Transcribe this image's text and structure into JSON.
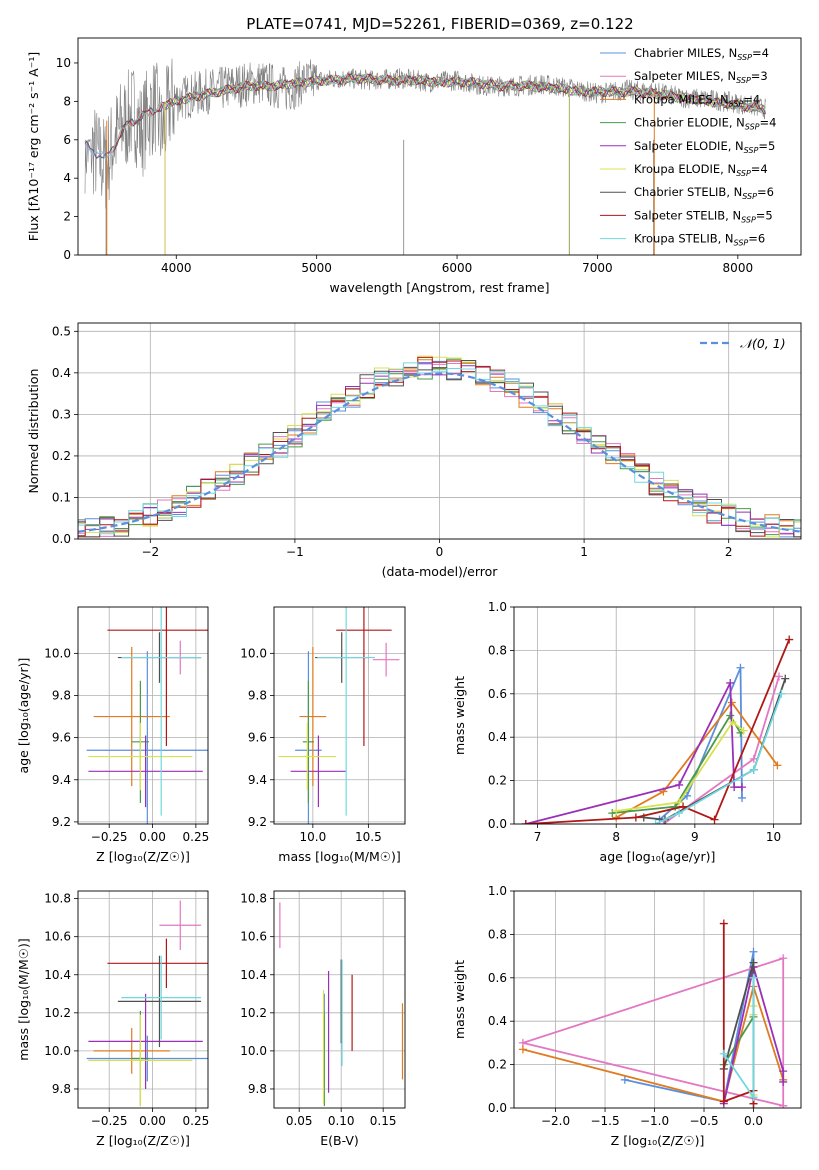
{
  "title": "PLATE=0741, MJD=52261, FIBERID=0369, z=0.122",
  "models": [
    {
      "name": "Chabrier MILES, N_SSP=4",
      "imf": "Chabrier MILES,",
      "n": "4",
      "color": "#5b8fdd"
    },
    {
      "name": "Salpeter MILES, N_SSP=3",
      "imf": "Salpeter MILES,",
      "n": "3",
      "color": "#e377c2"
    },
    {
      "name": "Kroupa MILES, N_SSP=4",
      "imf": "Kroupa MILES,",
      "n": "4",
      "color": "#e07b1f"
    },
    {
      "name": "Chabrier ELODIE, N_SSP=4",
      "imf": "Chabrier ELODIE,",
      "n": "4",
      "color": "#4a9a4a"
    },
    {
      "name": "Salpeter ELODIE, N_SSP=5",
      "imf": "Salpeter ELODIE,",
      "n": "5",
      "color": "#9a30b8"
    },
    {
      "name": "Kroupa ELODIE, N_SSP=4",
      "imf": "Kroupa ELODIE,",
      "n": "4",
      "color": "#d8e050"
    },
    {
      "name": "Chabrier STELIB, N_SSP=6",
      "imf": "Chabrier STELIB,",
      "n": "6",
      "color": "#505050"
    },
    {
      "name": "Salpeter STELIB, N_SSP=5",
      "imf": "Salpeter STELIB,",
      "n": "5",
      "color": "#b01818"
    },
    {
      "name": "Kroupa STELIB, N_SSP=6",
      "imf": "Kroupa STELIB,",
      "n": "6",
      "color": "#70d8e0"
    }
  ],
  "chart_data": [
    {
      "id": "spectrum",
      "type": "line",
      "xlabel": "wavelength [Angstrom, rest frame]",
      "ylabel": "Flux [fλ10⁻¹⁷ erg cm⁻² s⁻¹ A⁻¹]",
      "xlim": [
        3300,
        8450
      ],
      "ylim": [
        0,
        11.3
      ],
      "xticks": [
        4000,
        5000,
        6000,
        7000,
        8000
      ],
      "yticks": [
        0,
        2,
        4,
        6,
        8,
        10
      ],
      "data_color": "#808080",
      "data_x": [
        3350,
        3400,
        3450,
        3500,
        3550,
        3600,
        3650,
        3700,
        3750,
        3800,
        3850,
        3900,
        3950,
        4000,
        4100,
        4200,
        4300,
        4400,
        4500,
        4600,
        4700,
        4800,
        4900,
        5000,
        5200,
        5400,
        5600,
        5800,
        6000,
        6200,
        6400,
        6600,
        6800,
        7000,
        7200,
        7400,
        7600,
        7800,
        8000,
        8200
      ],
      "data_y": [
        5.8,
        5.6,
        5.0,
        4.7,
        5.8,
        6.6,
        7.0,
        7.5,
        6.4,
        7.4,
        7.8,
        6.2,
        7.8,
        8.1,
        8.3,
        8.5,
        8.6,
        8.8,
        8.9,
        9.0,
        8.8,
        8.6,
        9.0,
        9.1,
        9.2,
        9.1,
        9.2,
        9.0,
        9.1,
        8.8,
        8.8,
        8.9,
        8.7,
        8.4,
        8.6,
        8.5,
        8.2,
        8.1,
        7.9,
        7.6
      ],
      "model_x": [
        3350,
        3500,
        3650,
        3800,
        3950,
        4100,
        4300,
        4500,
        4700,
        4900,
        5100,
        5300,
        5500,
        5700,
        5900,
        6100,
        6300,
        6500,
        6700,
        6900,
        7100,
        7300,
        7500,
        7700,
        7900,
        8100,
        8200
      ],
      "model_y": [
        5.7,
        5.0,
        6.8,
        7.4,
        7.9,
        8.2,
        8.5,
        8.8,
        8.8,
        9.0,
        9.1,
        9.2,
        9.1,
        9.1,
        9.0,
        9.0,
        8.8,
        8.8,
        8.7,
        8.5,
        8.5,
        8.5,
        8.3,
        8.1,
        7.9,
        7.7,
        7.6
      ],
      "model_start": [
        3350,
        3350,
        3540,
        3920,
        3920,
        3920,
        3350,
        3550,
        3350
      ],
      "drops": [
        3500,
        3920,
        5620,
        6800,
        7400
      ]
    },
    {
      "id": "residuals",
      "type": "histogram",
      "xlabel": "(data-model)/error",
      "ylabel": "Normed distribution",
      "xlim": [
        -2.5,
        2.5
      ],
      "ylim": [
        0,
        0.52
      ],
      "xticks": [
        -2,
        -1,
        0,
        1,
        2
      ],
      "yticks": [
        0.0,
        0.1,
        0.2,
        0.3,
        0.4,
        0.5
      ],
      "legend": "𝒩(0, 1)",
      "bin_width": 0.1
    },
    {
      "id": "age-metallicity",
      "type": "errorbar",
      "xlabel": "Z [log₁₀(Z/Z☉)]",
      "ylabel": "age  [log₁₀(age/yr)]",
      "xlim": [
        -0.43,
        0.32
      ],
      "ylim": [
        9.19,
        10.22
      ],
      "xticks": [
        -0.25,
        0.0,
        0.25
      ],
      "xticklabels": [
        "−0.25",
        "0.00",
        "0.25"
      ],
      "yticks": [
        9.2,
        9.4,
        9.6,
        9.8,
        10.0
      ],
      "yticklabels": [
        "9.2",
        "9.4",
        "9.6",
        "9.8",
        "10.0"
      ],
      "points": [
        {
          "x": -0.03,
          "y": 9.54,
          "xerr": 0.35,
          "yerr": 0.47
        },
        {
          "x": 0.16,
          "y": 9.98,
          "xerr": 0.12,
          "yerr": 0.08
        },
        {
          "x": -0.12,
          "y": 9.7,
          "xerr": 0.22,
          "yerr": 0.33
        },
        {
          "x": -0.07,
          "y": 9.58,
          "xerr": 0.05,
          "yerr": 0.29
        },
        {
          "x": -0.04,
          "y": 9.44,
          "xerr": 0.33,
          "yerr": 0.17
        },
        {
          "x": -0.07,
          "y": 9.51,
          "xerr": 0.3,
          "yerr": 0.16
        },
        {
          "x": 0.04,
          "y": 9.98,
          "xerr": 0.24,
          "yerr": 0.12
        },
        {
          "x": 0.08,
          "y": 10.11,
          "xerr": 0.34,
          "yerr": 0.55
        },
        {
          "x": 0.05,
          "y": 9.98,
          "xerr": 0.23,
          "yerr": 0.75
        }
      ]
    },
    {
      "id": "age-mass",
      "type": "errorbar",
      "xlabel": "mass [log₁₀(M/M☉)]",
      "ylabel": "",
      "xlim": [
        9.65,
        10.83
      ],
      "ylim": [
        9.19,
        10.22
      ],
      "xticks": [
        10.0,
        10.5
      ],
      "xticklabels": [
        "10.0",
        "10.5"
      ],
      "yticks": [
        9.2,
        9.4,
        9.6,
        9.8,
        10.0
      ],
      "yticklabels": [
        "9.2",
        "9.4",
        "9.6",
        "9.8",
        "10.0"
      ],
      "points": [
        {
          "x": 9.96,
          "y": 9.54,
          "xerr": 0.12,
          "yerr": 0.47
        },
        {
          "x": 10.66,
          "y": 9.97,
          "xerr": 0.12,
          "yerr": 0.08
        },
        {
          "x": 10.0,
          "y": 9.7,
          "xerr": 0.12,
          "yerr": 0.33
        },
        {
          "x": 9.96,
          "y": 9.58,
          "xerr": 0.05,
          "yerr": 0.29
        },
        {
          "x": 10.05,
          "y": 9.44,
          "xerr": 0.25,
          "yerr": 0.17
        },
        {
          "x": 9.95,
          "y": 9.51,
          "xerr": 0.26,
          "yerr": 0.16
        },
        {
          "x": 10.26,
          "y": 9.98,
          "xerr": 0.24,
          "yerr": 0.12
        },
        {
          "x": 10.46,
          "y": 10.11,
          "xerr": 0.25,
          "yerr": 0.55
        },
        {
          "x": 10.3,
          "y": 9.98,
          "xerr": 0.26,
          "yerr": 0.75
        }
      ]
    },
    {
      "id": "mass-weight-age",
      "type": "line",
      "xlabel": "age  [log₁₀(age/yr)]",
      "ylabel": "mass weight",
      "xlim": [
        6.7,
        10.35
      ],
      "ylim": [
        0,
        1.0
      ],
      "xticks": [
        7,
        8,
        9,
        10
      ],
      "xticklabels": [
        "7",
        "8",
        "9",
        "10"
      ],
      "yticks": [
        0.0,
        0.2,
        0.4,
        0.6,
        0.8,
        1.0
      ],
      "yticklabels": [
        "0.0",
        "0.2",
        "0.4",
        "0.6",
        "0.8",
        "1.0"
      ],
      "series": [
        {
          "x": [
            8.55,
            8.9,
            9.58,
            9.6
          ],
          "y": [
            0.02,
            0.13,
            0.72,
            0.12
          ]
        },
        {
          "x": [
            8.6,
            9.75,
            10.07
          ],
          "y": [
            0.0,
            0.3,
            0.68
          ]
        },
        {
          "x": [
            8.0,
            8.6,
            9.47,
            10.05
          ],
          "y": [
            0.03,
            0.15,
            0.56,
            0.27
          ]
        },
        {
          "x": [
            7.95,
            8.75,
            9.45,
            9.58
          ],
          "y": [
            0.05,
            0.08,
            0.5,
            0.42
          ]
        },
        {
          "x": [
            6.85,
            8.8,
            9.45,
            9.5,
            9.6
          ],
          "y": [
            0.0,
            0.18,
            0.65,
            0.17,
            0.17
          ]
        },
        {
          "x": [
            8.0,
            8.8,
            9.48,
            9.62
          ],
          "y": [
            0.06,
            0.1,
            0.47,
            0.43
          ]
        },
        {
          "x": [
            8.35,
            8.62,
            9.75,
            10.15
          ],
          "y": [
            0.03,
            0.02,
            0.25,
            0.67
          ]
        },
        {
          "x": [
            6.85,
            8.25,
            8.85,
            9.25,
            10.2
          ],
          "y": [
            0.0,
            0.03,
            0.08,
            0.02,
            0.85
          ]
        },
        {
          "x": [
            8.5,
            8.8,
            9.75,
            10.1
          ],
          "y": [
            0.0,
            0.05,
            0.25,
            0.6
          ]
        }
      ]
    },
    {
      "id": "mass-metallicity",
      "type": "errorbar",
      "xlabel": "Z [log₁₀(Z/Z☉)]",
      "ylabel": "mass [log₁₀(M/M☉)]",
      "xlim": [
        -0.43,
        0.32
      ],
      "ylim": [
        9.7,
        10.84
      ],
      "xticks": [
        -0.25,
        0.0,
        0.25
      ],
      "xticklabels": [
        "−0.25",
        "0.00",
        "0.25"
      ],
      "yticks": [
        9.8,
        10.0,
        10.2,
        10.4,
        10.6,
        10.8
      ],
      "yticklabels": [
        "9.8",
        "10.0",
        "10.2",
        "10.4",
        "10.6",
        "10.8"
      ],
      "points": [
        {
          "x": -0.03,
          "y": 9.96,
          "xerr": 0.35,
          "yerr": 0.12
        },
        {
          "x": 0.16,
          "y": 10.66,
          "xerr": 0.12,
          "yerr": 0.13
        },
        {
          "x": -0.12,
          "y": 10.0,
          "xerr": 0.22,
          "yerr": 0.12
        },
        {
          "x": -0.07,
          "y": 9.96,
          "xerr": 0.05,
          "yerr": 0.25
        },
        {
          "x": -0.04,
          "y": 10.05,
          "xerr": 0.33,
          "yerr": 0.25
        },
        {
          "x": -0.07,
          "y": 9.95,
          "xerr": 0.3,
          "yerr": 0.24
        },
        {
          "x": 0.04,
          "y": 10.26,
          "xerr": 0.24,
          "yerr": 0.24
        },
        {
          "x": 0.08,
          "y": 10.46,
          "xerr": 0.34,
          "yerr": 0.13
        },
        {
          "x": 0.05,
          "y": 10.28,
          "xerr": 0.23,
          "yerr": 0.22
        }
      ]
    },
    {
      "id": "mass-extinction",
      "type": "errorbar",
      "xlabel": "E(B-V)",
      "ylabel": "",
      "xlim": [
        0.02,
        0.176
      ],
      "ylim": [
        9.7,
        10.84
      ],
      "xticks": [
        0.05,
        0.1,
        0.15
      ],
      "xticklabels": [
        "0.05",
        "0.10",
        "0.15"
      ],
      "yticks": [
        9.8,
        10.0,
        10.2,
        10.4,
        10.6,
        10.8
      ],
      "yticklabels": [
        "9.8",
        "10.0",
        "10.2",
        "10.4",
        "10.6",
        "10.8"
      ],
      "points": [
        {
          "x": 0.08,
          "y": 10.05,
          "xerr": 0,
          "yerr": 0.25
        },
        {
          "x": 0.027,
          "y": 10.66,
          "xerr": 0,
          "yerr": 0.12
        },
        {
          "x": 0.173,
          "y": 10.05,
          "xerr": 0,
          "yerr": 0.2
        },
        {
          "x": 0.08,
          "y": 9.96,
          "xerr": 0,
          "yerr": 0.25
        },
        {
          "x": 0.085,
          "y": 10.1,
          "xerr": 0,
          "yerr": 0.32
        },
        {
          "x": 0.079,
          "y": 10.02,
          "xerr": 0,
          "yerr": 0.3
        },
        {
          "x": 0.1,
          "y": 10.26,
          "xerr": 0,
          "yerr": 0.22
        },
        {
          "x": 0.113,
          "y": 10.2,
          "xerr": 0,
          "yerr": 0.2
        },
        {
          "x": 0.101,
          "y": 10.2,
          "xerr": 0,
          "yerr": 0.28
        }
      ]
    },
    {
      "id": "mass-weight-metallicity",
      "type": "line",
      "xlabel": "Z [log₁₀(Z/Z☉)]",
      "ylabel": "mass weight",
      "xlim": [
        -2.42,
        0.48
      ],
      "ylim": [
        0,
        1.0
      ],
      "xticks": [
        -2.0,
        -1.5,
        -1.0,
        -0.5,
        0.0
      ],
      "xticklabels": [
        "−2.0",
        "−1.5",
        "−1.0",
        "−0.5",
        "0.0"
      ],
      "yticks": [
        0.0,
        0.2,
        0.4,
        0.6,
        0.8,
        1.0
      ],
      "yticklabels": [
        "0.0",
        "0.2",
        "0.4",
        "0.6",
        "0.8",
        "1.0"
      ],
      "series": [
        {
          "x": [
            -1.3,
            -0.3,
            0.0,
            0.0
          ],
          "y": [
            0.13,
            0.03,
            0.72,
            0.02
          ]
        },
        {
          "x": [
            0.3,
            -2.33,
            0.3,
            0.3
          ],
          "y": [
            0.01,
            0.3,
            0.69,
            0.01
          ]
        },
        {
          "x": [
            -2.33,
            -0.3,
            0.0,
            0.3
          ],
          "y": [
            0.27,
            0.03,
            0.56,
            0.13
          ]
        },
        {
          "x": [
            -0.3,
            0.0,
            0.0
          ],
          "y": [
            0.2,
            0.42,
            0.05
          ]
        },
        {
          "x": [
            -0.3,
            0.0,
            0.3,
            0.3
          ],
          "y": [
            0.02,
            0.65,
            0.17,
            0.12
          ]
        },
        {
          "x": [
            0.0,
            0.0,
            0.0
          ],
          "y": [
            0.06,
            0.47,
            0.43
          ]
        },
        {
          "x": [
            -0.3,
            0.0,
            0.0
          ],
          "y": [
            0.18,
            0.67,
            0.02
          ]
        },
        {
          "x": [
            -0.3,
            -0.3,
            0.0,
            0.0
          ],
          "y": [
            0.85,
            0.03,
            0.08,
            0.02
          ]
        },
        {
          "x": [
            -0.3,
            0.0,
            0.0
          ],
          "y": [
            0.25,
            0.05,
            0.6
          ]
        }
      ]
    }
  ]
}
